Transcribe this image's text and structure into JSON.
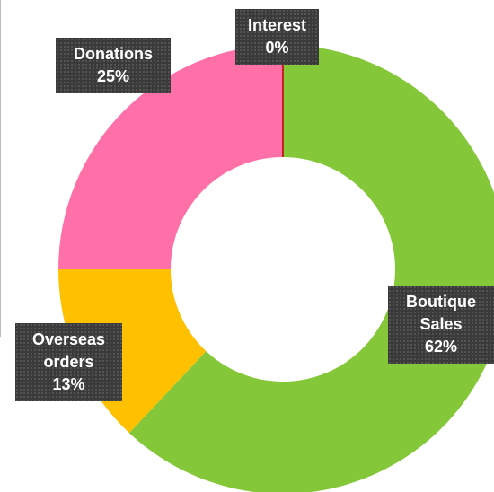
{
  "chart_data": {
    "type": "donut",
    "categories": [
      "Boutique Sales",
      "Overseas orders",
      "Donations",
      "Interest"
    ],
    "values": [
      62,
      13,
      25,
      0
    ],
    "value_labels": [
      "62%",
      "13%",
      "25%",
      "0%"
    ],
    "colors": [
      "#84c83a",
      "#ffc000",
      "#ff6fa8",
      "#c00000"
    ]
  }
}
